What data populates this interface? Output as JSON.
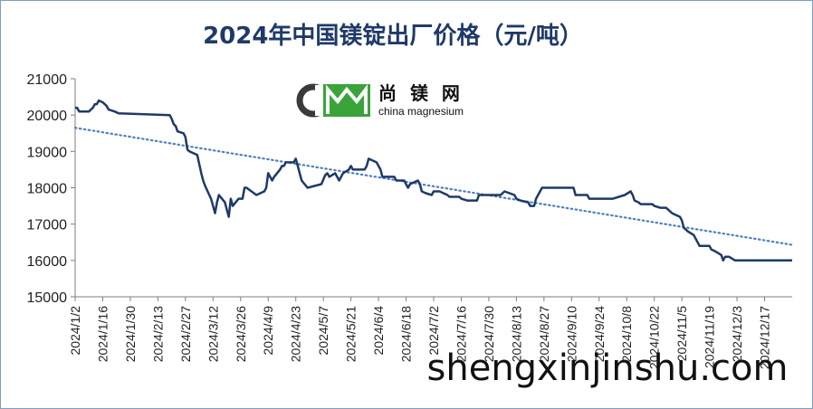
{
  "chart_data": {
    "type": "line",
    "title": "2024年中国镁锭出厂价格（元/吨）",
    "ylim": [
      15000,
      21000
    ],
    "y_ticks": [
      "21000",
      "20000",
      "19000",
      "18000",
      "17000",
      "16000",
      "15000"
    ],
    "x_ticks": [
      "2024/1/2",
      "2024/1/16",
      "2024/1/30",
      "2024/2/13",
      "2024/2/27",
      "2024/3/12",
      "2024/3/26",
      "2024/4/9",
      "2024/4/23",
      "2024/5/7",
      "2024/5/21",
      "2024/6/4",
      "2024/6/18",
      "2024/7/2",
      "2024/7/16",
      "2024/7/30",
      "2024/8/13",
      "2024/8/27",
      "2024/9/10",
      "2024/9/24",
      "2024/10/8",
      "2024/10/22",
      "2024/11/5",
      "2024/11/19",
      "2024/12/3",
      "2024/12/17"
    ],
    "grid": false,
    "series": [
      {
        "color": "#1f3a68",
        "points": [
          [
            "2024/1/2",
            20200
          ],
          [
            "2024/1/3",
            20200
          ],
          [
            "2024/1/4",
            20100
          ],
          [
            "2024/1/9",
            20100
          ],
          [
            "2024/1/10",
            20150
          ],
          [
            "2024/1/11",
            20200
          ],
          [
            "2024/1/12",
            20300
          ],
          [
            "2024/1/13",
            20300
          ],
          [
            "2024/1/14",
            20400
          ],
          [
            "2024/1/16",
            20350
          ],
          [
            "2024/1/18",
            20250
          ],
          [
            "2024/1/19",
            20150
          ],
          [
            "2024/1/22",
            20100
          ],
          [
            "2024/1/24",
            20050
          ],
          [
            "2024/2/19",
            20000
          ],
          [
            "2024/2/20",
            19900
          ],
          [
            "2024/2/21",
            19750
          ],
          [
            "2024/2/22",
            19700
          ],
          [
            "2024/2/23",
            19550
          ],
          [
            "2024/2/26",
            19500
          ],
          [
            "2024/2/27",
            19400
          ],
          [
            "2024/2/28",
            19050
          ],
          [
            "2024/2/29",
            19000
          ],
          [
            "2024/3/4",
            18900
          ],
          [
            "2024/3/5",
            18650
          ],
          [
            "2024/3/6",
            18400
          ],
          [
            "2024/3/7",
            18200
          ],
          [
            "2024/3/8",
            18050
          ],
          [
            "2024/3/11",
            17700
          ],
          [
            "2024/3/12",
            17500
          ],
          [
            "2024/3/13",
            17300
          ],
          [
            "2024/3/14",
            17600
          ],
          [
            "2024/3/15",
            17800
          ],
          [
            "2024/3/18",
            17600
          ],
          [
            "2024/3/19",
            17400
          ],
          [
            "2024/3/20",
            17200
          ],
          [
            "2024/3/21",
            17700
          ],
          [
            "2024/3/22",
            17500
          ],
          [
            "2024/3/25",
            17700
          ],
          [
            "2024/3/27",
            17700
          ],
          [
            "2024/3/28",
            18000
          ],
          [
            "2024/3/29",
            18000
          ],
          [
            "2024/4/3",
            17800
          ],
          [
            "2024/4/7",
            17900
          ],
          [
            "2024/4/8",
            18000
          ],
          [
            "2024/4/9",
            18400
          ],
          [
            "2024/4/11",
            18200
          ],
          [
            "2024/4/12",
            18300
          ],
          [
            "2024/4/15",
            18500
          ],
          [
            "2024/4/16",
            18600
          ],
          [
            "2024/4/17",
            18600
          ],
          [
            "2024/4/18",
            18700
          ],
          [
            "2024/4/22",
            18700
          ],
          [
            "2024/4/23",
            18800
          ],
          [
            "2024/4/24",
            18600
          ],
          [
            "2024/4/25",
            18400
          ],
          [
            "2024/4/26",
            18200
          ],
          [
            "2024/4/29",
            18000
          ],
          [
            "2024/5/6",
            18100
          ],
          [
            "2024/5/8",
            18350
          ],
          [
            "2024/5/9",
            18400
          ],
          [
            "2024/5/10",
            18300
          ],
          [
            "2024/5/13",
            18400
          ],
          [
            "2024/5/14",
            18300
          ],
          [
            "2024/5/15",
            18200
          ],
          [
            "2024/5/17",
            18400
          ],
          [
            "2024/5/20",
            18500
          ],
          [
            "2024/5/21",
            18600
          ],
          [
            "2024/5/22",
            18500
          ],
          [
            "2024/5/28",
            18500
          ],
          [
            "2024/5/29",
            18600
          ],
          [
            "2024/5/30",
            18800
          ],
          [
            "2024/6/3",
            18700
          ],
          [
            "2024/6/4",
            18600
          ],
          [
            "2024/6/5",
            18500
          ],
          [
            "2024/6/6",
            18300
          ],
          [
            "2024/6/12",
            18300
          ],
          [
            "2024/6/13",
            18200
          ],
          [
            "2024/6/17",
            18200
          ],
          [
            "2024/6/18",
            18100
          ],
          [
            "2024/6/19",
            18000
          ],
          [
            "2024/6/20",
            18100
          ],
          [
            "2024/6/24",
            18200
          ],
          [
            "2024/6/25",
            18100
          ],
          [
            "2024/6/26",
            17900
          ],
          [
            "2024/6/28",
            17850
          ],
          [
            "2024/7/1",
            17800
          ],
          [
            "2024/7/2",
            17900
          ],
          [
            "2024/7/5",
            17900
          ],
          [
            "2024/7/9",
            17800
          ],
          [
            "2024/7/10",
            17750
          ],
          [
            "2024/7/15",
            17750
          ],
          [
            "2024/7/16",
            17700
          ],
          [
            "2024/7/19",
            17650
          ],
          [
            "2024/7/24",
            17650
          ],
          [
            "2024/7/25",
            17800
          ],
          [
            "2024/8/5",
            17800
          ],
          [
            "2024/8/7",
            17900
          ],
          [
            "2024/8/12",
            17800
          ],
          [
            "2024/8/13",
            17700
          ],
          [
            "2024/8/15",
            17650
          ],
          [
            "2024/8/19",
            17600
          ],
          [
            "2024/8/20",
            17500
          ],
          [
            "2024/8/22",
            17500
          ],
          [
            "2024/8/23",
            17700
          ],
          [
            "2024/8/26",
            18000
          ],
          [
            "2024/9/11",
            18000
          ],
          [
            "2024/9/12",
            17800
          ],
          [
            "2024/9/18",
            17800
          ],
          [
            "2024/9/19",
            17700
          ],
          [
            "2024/10/1",
            17700
          ],
          [
            "2024/10/7",
            17800
          ],
          [
            "2024/10/10",
            17900
          ],
          [
            "2024/10/11",
            17800
          ],
          [
            "2024/10/12",
            17650
          ],
          [
            "2024/10/14",
            17600
          ],
          [
            "2024/10/15",
            17550
          ],
          [
            "2024/10/21",
            17550
          ],
          [
            "2024/10/22",
            17500
          ],
          [
            "2024/10/25",
            17450
          ],
          [
            "2024/10/28",
            17450
          ],
          [
            "2024/10/29",
            17400
          ],
          [
            "2024/10/31",
            17300
          ],
          [
            "2024/11/4",
            17200
          ],
          [
            "2024/11/5",
            17100
          ],
          [
            "2024/11/6",
            16900
          ],
          [
            "2024/11/8",
            16800
          ],
          [
            "2024/11/11",
            16700
          ],
          [
            "2024/11/12",
            16600
          ],
          [
            "2024/11/13",
            16500
          ],
          [
            "2024/11/14",
            16400
          ],
          [
            "2024/11/19",
            16400
          ],
          [
            "2024/11/20",
            16300
          ],
          [
            "2024/11/22",
            16250
          ],
          [
            "2024/11/25",
            16150
          ],
          [
            "2024/11/26",
            16000
          ],
          [
            "2024/11/27",
            16100
          ],
          [
            "2024/11/29",
            16100
          ],
          [
            "2024/12/2",
            16000
          ],
          [
            "2024/12/31",
            16000
          ]
        ]
      }
    ],
    "trendline": {
      "style": "dotted",
      "color": "#4e7fc2",
      "start": [
        "2024/1/2",
        19650
      ],
      "end": [
        "2024/12/31",
        16430
      ]
    }
  },
  "logo": {
    "mark_letters": "CM",
    "text_cn": "尚 镁 网",
    "text_en": "china magnesium",
    "colors": {
      "dark": "#3a3a3a",
      "green": "#3aa43a"
    }
  },
  "watermark": {
    "text": "shengxinjinshu.com"
  }
}
